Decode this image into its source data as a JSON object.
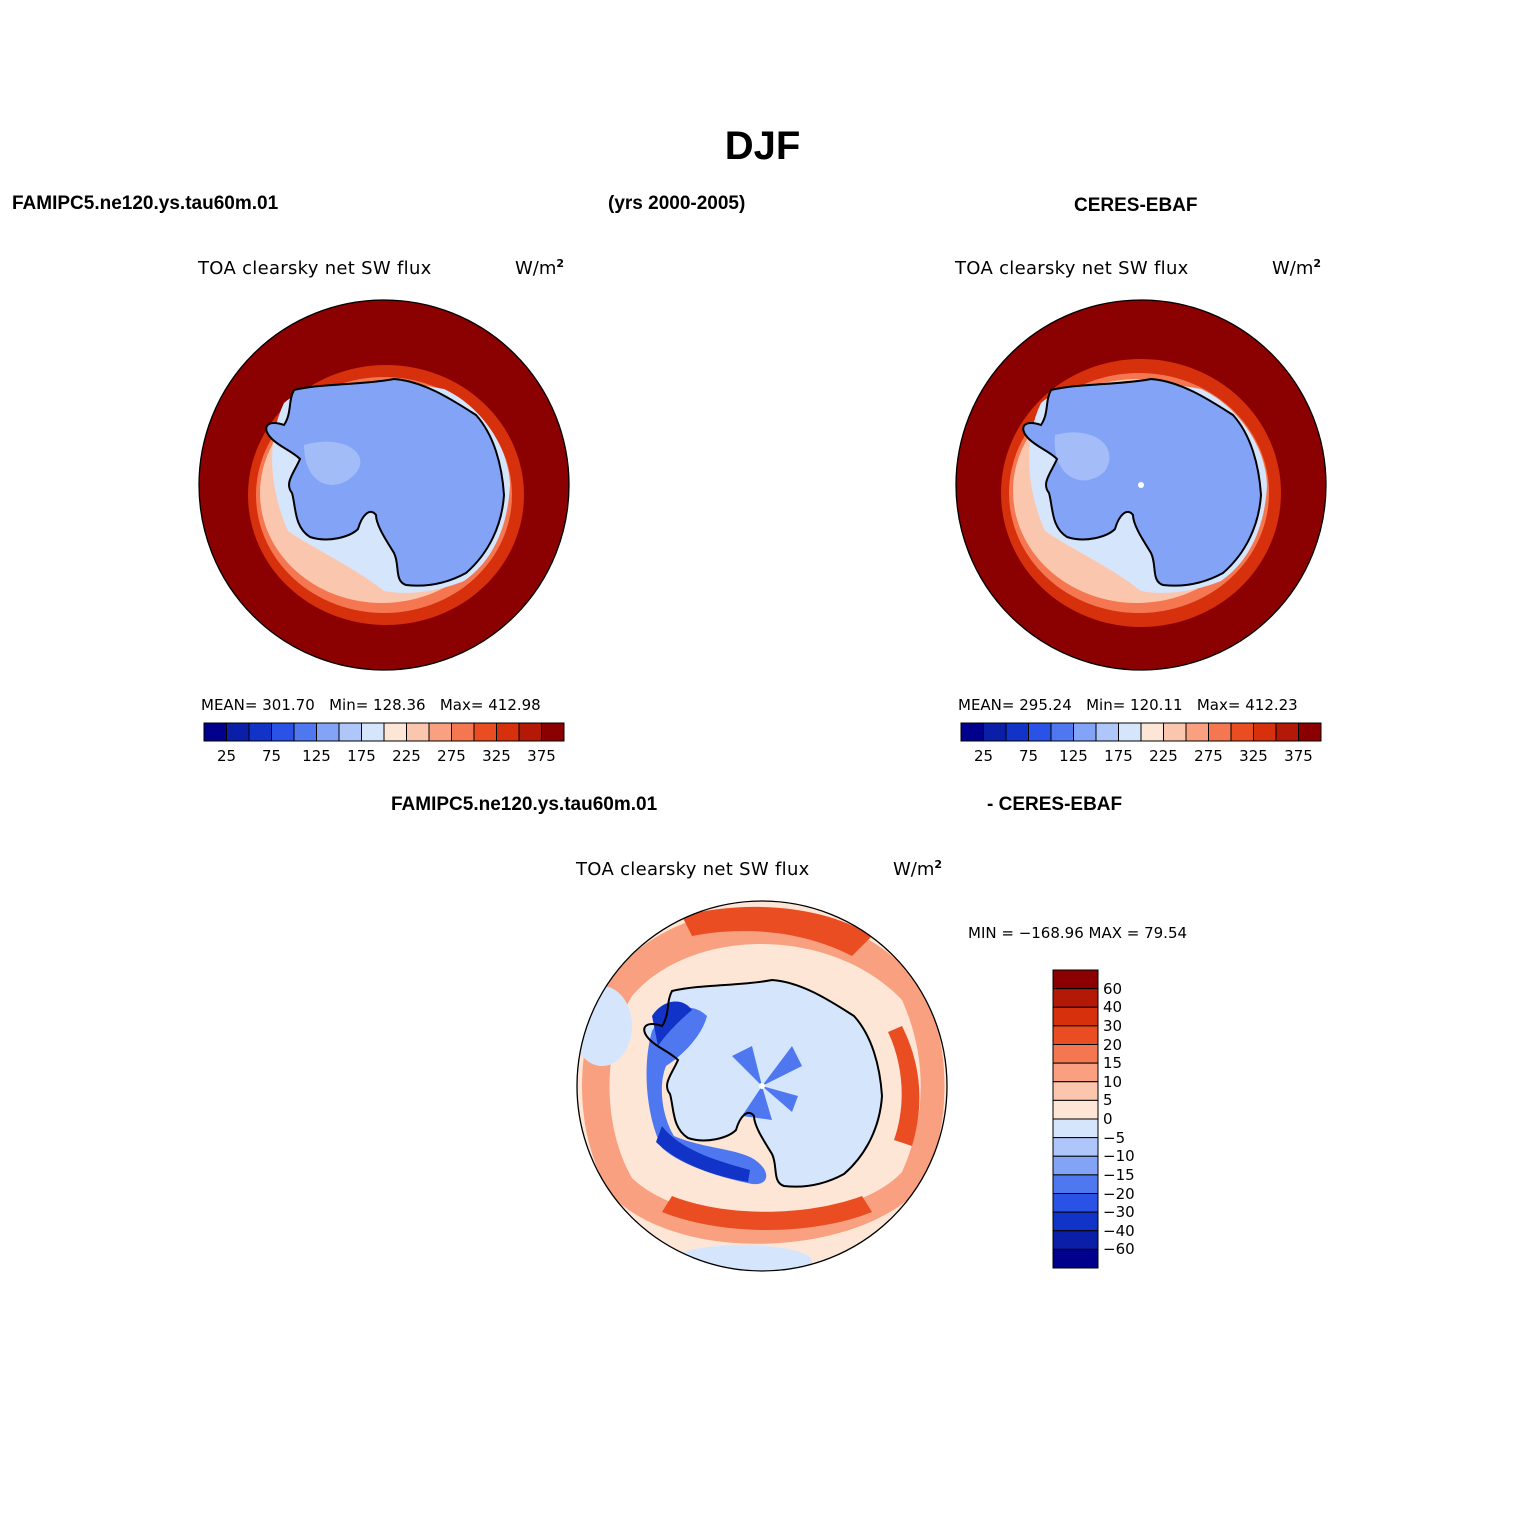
{
  "title": "DJF",
  "header": {
    "left": "FAMIPC5.ne120.ys.tau60m.01",
    "center": "(yrs 2000-2005)",
    "right": "CERES-EBAF"
  },
  "panels": [
    {
      "variable": "TOA clearsky net SW flux",
      "units": "W/m",
      "units_sup": "2",
      "stats": {
        "mean_label": "MEAN=",
        "mean": "301.70",
        "min_label": "Min=",
        "min": "128.36",
        "max_label": "Max=",
        "max": "412.98"
      }
    },
    {
      "variable": "TOA clearsky net SW flux",
      "units": "W/m",
      "units_sup": "2",
      "stats": {
        "mean_label": "MEAN=",
        "mean": "295.24",
        "min_label": "Min=",
        "min": "120.11",
        "max_label": "Max=",
        "max": "412.23"
      }
    }
  ],
  "diff": {
    "label_left": "FAMIPC5.ne120.ys.tau60m.01",
    "label_right": "- CERES-EBAF",
    "variable": "TOA clearsky net SW flux",
    "units": "W/m",
    "units_sup": "2",
    "minmax": "MIN = −168.96 MAX =   79.54"
  },
  "colorbar_main": {
    "colors": [
      "#00008c",
      "#0a1ea8",
      "#1233c8",
      "#2a52e6",
      "#4f78f0",
      "#82a3f6",
      "#afc6fa",
      "#d5e6fc",
      "#fde6d6",
      "#fbc6ae",
      "#f8a07f",
      "#f47752",
      "#ea4d22",
      "#d7300c",
      "#b31906",
      "#8b0000"
    ],
    "tick_labels": [
      "25",
      "75",
      "125",
      "175",
      "225",
      "275",
      "325",
      "375"
    ]
  },
  "colorbar_diff": {
    "colors": [
      "#8b0000",
      "#b31906",
      "#d7300c",
      "#ea4d22",
      "#f47752",
      "#f8a07f",
      "#fbc6ae",
      "#fde6d6",
      "#d5e6fc",
      "#afc6fa",
      "#82a3f6",
      "#4f78f0",
      "#2a52e6",
      "#1233c8",
      "#0a1ea8",
      "#00008c"
    ],
    "tick_labels": [
      "60",
      "40",
      "30",
      "20",
      "15",
      "10",
      "5",
      "0",
      "−5",
      "−10",
      "−15",
      "−20",
      "−30",
      "−40",
      "−60"
    ]
  },
  "map_colors": {
    "ocean_far": "#8b0000",
    "ocean_mid": "#d7300c",
    "ocean_near": "#f47752",
    "ice_edge": "#fbc6ae",
    "shelf": "#d5e6fc",
    "continent": "#82a3f6",
    "continent_light": "#afc6fa",
    "diff_pos_strong": "#ea4d22",
    "diff_pos": "#f8a07f",
    "diff_pos_weak": "#fde6d6",
    "diff_neg_weak": "#d5e6fc",
    "diff_neg": "#4f78f0",
    "diff_neg_strong": "#1233c8"
  }
}
